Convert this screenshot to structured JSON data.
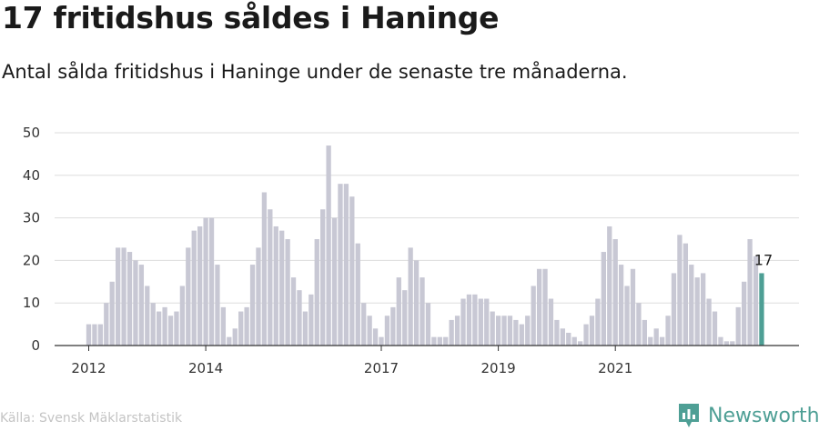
{
  "title": "17 fritidshus såldes i Haninge",
  "subtitle": "Antal sålda fritidshus i Haninge under de senaste tre månaderna.",
  "source": "Källa: Svensk Mäklarstatistik",
  "brand": {
    "name": "Newsworthy",
    "icon": "newsworthy-logo-icon",
    "color": "#4e9f95"
  },
  "colors": {
    "bar": "#c8c8d4",
    "highlight": "#4e9f95",
    "grid": "#dddddd",
    "axis": "#333333"
  },
  "chart_data": {
    "type": "bar",
    "title": "17 fritidshus såldes i Haninge",
    "subtitle": "Antal sålda fritidshus i Haninge under de senaste tre månaderna.",
    "ylim": [
      0,
      50
    ],
    "yticks": [
      0,
      10,
      20,
      30,
      40,
      50
    ],
    "xtick_labels": [
      "2012",
      "2014",
      "2017",
      "2019",
      "2021"
    ],
    "xtick_index": [
      0,
      20,
      50,
      70,
      90
    ],
    "grid": true,
    "values": [
      5,
      5,
      5,
      10,
      15,
      23,
      23,
      22,
      20,
      19,
      14,
      10,
      8,
      9,
      7,
      8,
      14,
      23,
      27,
      28,
      30,
      30,
      19,
      9,
      2,
      4,
      8,
      9,
      19,
      23,
      36,
      32,
      28,
      27,
      25,
      16,
      13,
      8,
      12,
      25,
      32,
      47,
      30,
      38,
      38,
      35,
      24,
      10,
      7,
      4,
      2,
      7,
      9,
      16,
      13,
      23,
      20,
      16,
      10,
      2,
      2,
      2,
      6,
      7,
      11,
      12,
      12,
      11,
      11,
      8,
      7,
      7,
      7,
      6,
      5,
      7,
      14,
      18,
      18,
      11,
      6,
      4,
      3,
      2,
      1,
      5,
      7,
      11,
      22,
      28,
      25,
      19,
      14,
      18,
      10,
      6,
      2,
      4,
      2,
      7,
      17,
      26,
      24,
      19,
      16,
      17,
      11,
      8,
      2,
      1,
      1,
      9,
      15,
      25,
      21,
      17
    ],
    "highlight_index": 115,
    "highlight_label": "17"
  }
}
